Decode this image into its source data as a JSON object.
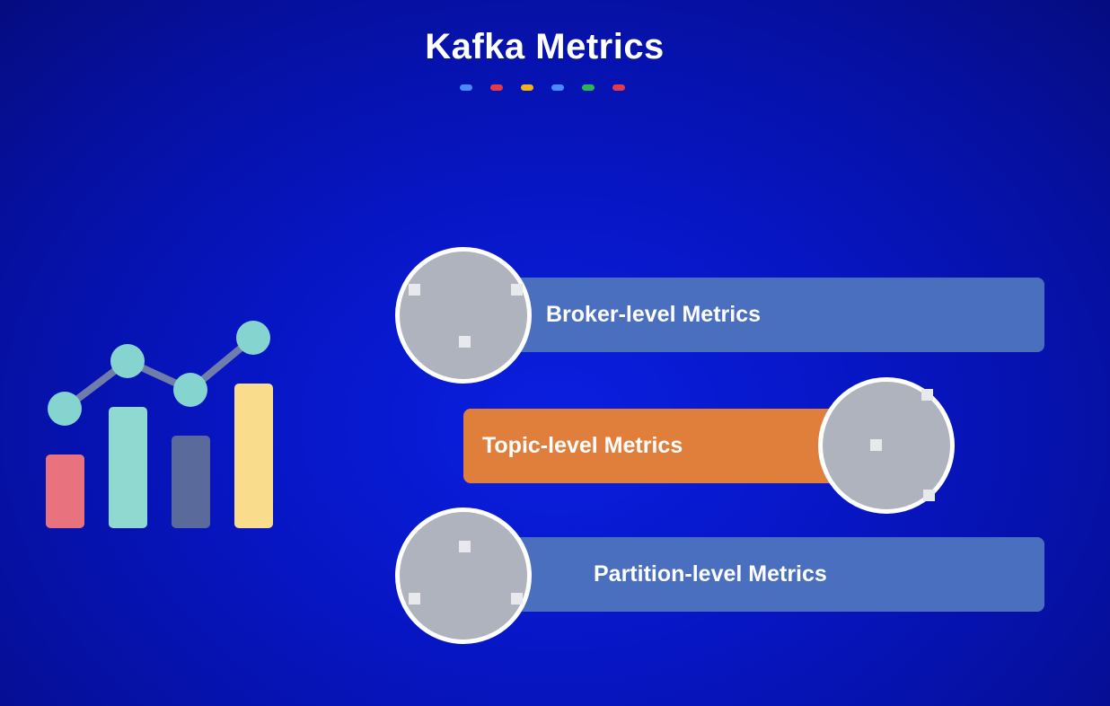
{
  "header": {
    "title": "Kafka Metrics",
    "dot_colors": [
      "#4a8cff",
      "#e23c4c",
      "#f2b21a",
      "#4a8cff",
      "#2eb356",
      "#e23c4c"
    ]
  },
  "items": [
    {
      "label": "Broker-level Metrics",
      "color": "#4a6fbe"
    },
    {
      "label": "Topic-level Metrics",
      "color": "#e07e3c"
    },
    {
      "label": "Partition-level Metrics",
      "color": "#4a6fbe"
    }
  ],
  "icon": {
    "bar_colors": [
      "#e8727e",
      "#8fd9d0",
      "#5a6a9a",
      "#f9dc8c"
    ],
    "node_color": "#86d4cf",
    "line_color": "#6f7dab"
  }
}
